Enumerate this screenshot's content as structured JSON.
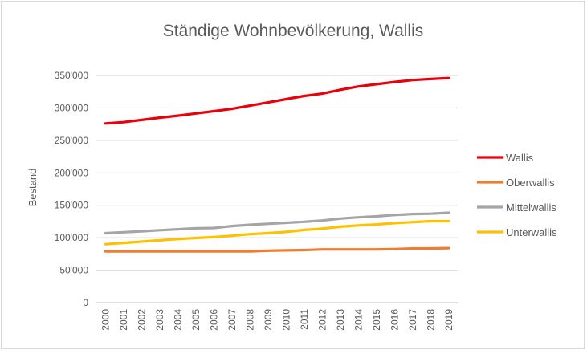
{
  "chart_data": {
    "type": "line",
    "title": "Ständige Wohnbevölkerung, Wallis",
    "xlabel": "",
    "ylabel": "Bestand",
    "ylim": [
      0,
      350000
    ],
    "yticks": [
      0,
      50000,
      100000,
      150000,
      200000,
      250000,
      300000,
      350000
    ],
    "ytick_labels": [
      "0",
      "50'000",
      "100'000",
      "150'000",
      "200'000",
      "250'000",
      "300'000",
      "350'000"
    ],
    "grid": true,
    "legend_position": "right",
    "categories": [
      "2000",
      "2001",
      "2002",
      "2003",
      "2004",
      "2005",
      "2006",
      "2007",
      "2008",
      "2009",
      "2010",
      "2011",
      "2012",
      "2013",
      "2014",
      "2015",
      "2016",
      "2017",
      "2018",
      "2019"
    ],
    "series": [
      {
        "name": "Wallis",
        "color": "#e8000b",
        "values": [
          276000,
          278000,
          281500,
          285000,
          288000,
          291500,
          295000,
          298500,
          303500,
          308500,
          313500,
          318500,
          322000,
          328000,
          333000,
          336500,
          340000,
          343000,
          344500,
          346000
        ]
      },
      {
        "name": "Oberwallis",
        "color": "#ed7d31",
        "values": [
          79000,
          79000,
          79000,
          79000,
          79000,
          79000,
          79000,
          79000,
          79000,
          80000,
          80500,
          81000,
          82000,
          82000,
          82000,
          82000,
          82500,
          83500,
          83500,
          84000
        ]
      },
      {
        "name": "Mittelwallis",
        "color": "#a5a5a5",
        "values": [
          107000,
          108500,
          110000,
          111500,
          113000,
          114500,
          115000,
          118000,
          120000,
          121500,
          123000,
          124500,
          126500,
          129500,
          131500,
          133000,
          135000,
          136500,
          137000,
          138500
        ]
      },
      {
        "name": "Unterwallis",
        "color": "#ffc000",
        "values": [
          90000,
          92000,
          94000,
          96000,
          98000,
          99500,
          101000,
          103000,
          105500,
          107000,
          109000,
          112000,
          114000,
          117000,
          119000,
          120500,
          122500,
          124000,
          125500,
          125500
        ]
      }
    ]
  }
}
